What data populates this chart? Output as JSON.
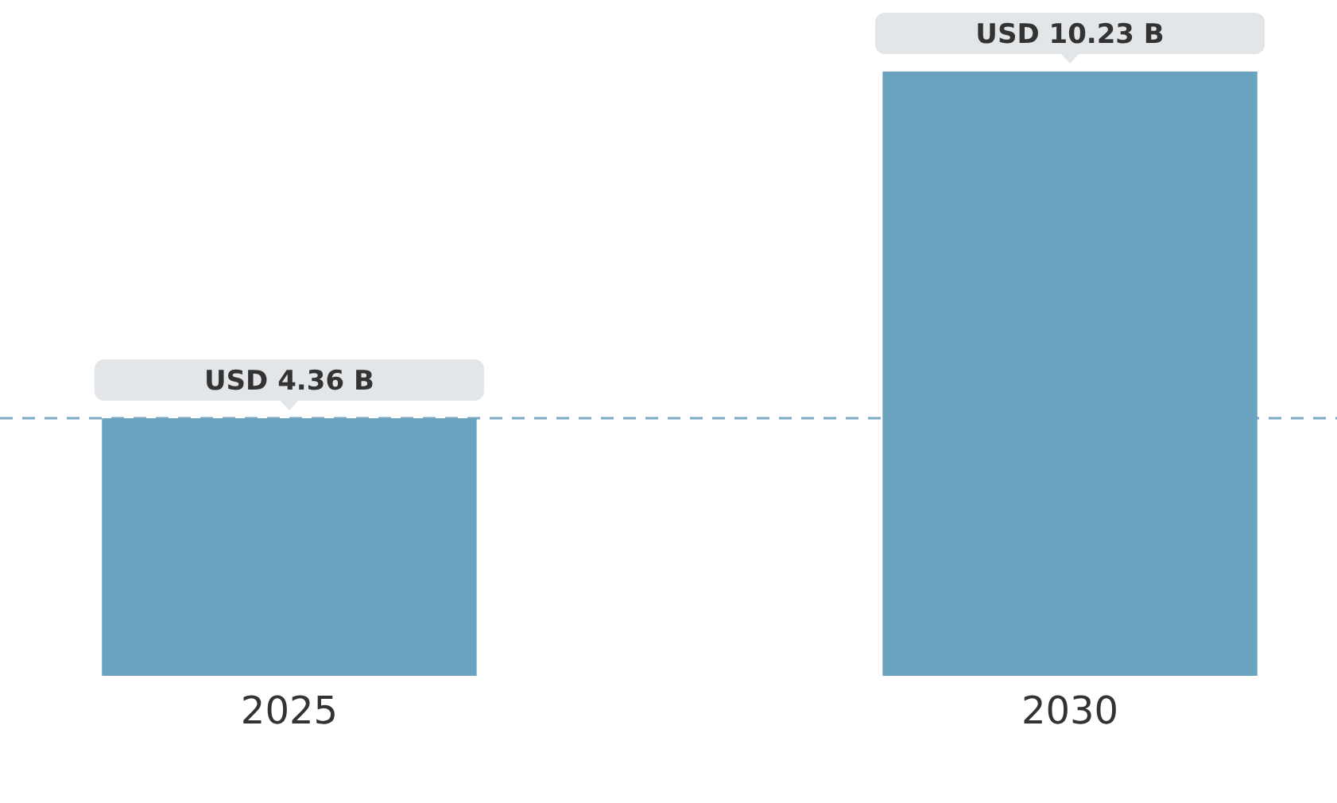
{
  "chart_data": {
    "type": "bar",
    "categories": [
      "2025",
      "2030"
    ],
    "values": [
      4.36,
      10.23
    ],
    "color": "#6aa3c0",
    "value_labels": [
      "USD 4.36 B",
      "USD 10.23 B"
    ],
    "ref_lines": [
      {
        "axis": "y",
        "value": 4.36,
        "color": "#7fa9c4",
        "line_style": "dashed"
      }
    ],
    "tick_labels": "x"
  }
}
